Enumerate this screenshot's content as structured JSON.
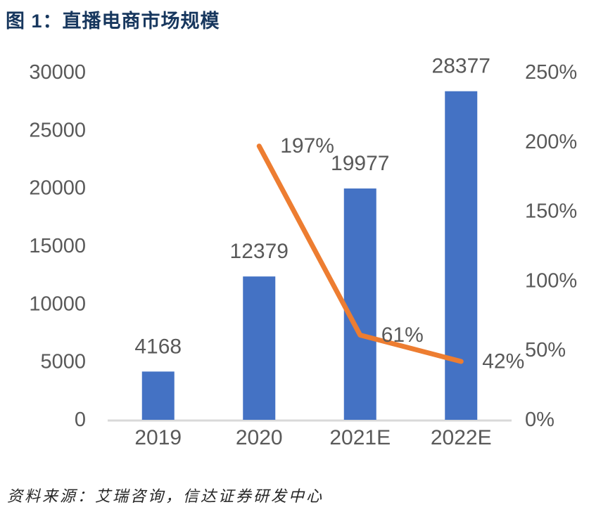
{
  "page": {
    "title": "图 1：直播电商市场规模",
    "source": "资料来源：艾瑞咨询，信达证券研发中心"
  },
  "chart_data": {
    "type": "bar+line",
    "title": "直播电商市场规模",
    "categories": [
      "2019",
      "2020",
      "2021E",
      "2022E"
    ],
    "series": [
      {
        "name": "bars",
        "type": "bar",
        "axis": "left",
        "color": "#4472C4",
        "values": [
          4168,
          12379,
          19977,
          28377
        ],
        "labels": [
          "4168",
          "12379",
          "19977",
          "28377"
        ]
      },
      {
        "name": "line",
        "type": "line",
        "axis": "right",
        "color": "#ED7D31",
        "values": [
          null,
          197,
          61,
          42
        ],
        "labels": [
          null,
          "197%",
          "61%",
          "42%"
        ]
      }
    ],
    "left_axis": {
      "min": 0,
      "max": 30000,
      "step": 5000,
      "ticks_top_to_bottom": [
        "30000",
        "25000",
        "20000",
        "15000",
        "10000",
        "5000",
        "0"
      ]
    },
    "right_axis": {
      "min": 0,
      "max": 250,
      "step": 50,
      "ticks_top_to_bottom": [
        "250%",
        "200%",
        "150%",
        "100%",
        "50%",
        "0%"
      ]
    },
    "grid": false,
    "legend": false,
    "label_color": "#595959",
    "axis_line_color": "#D9D9D9"
  }
}
